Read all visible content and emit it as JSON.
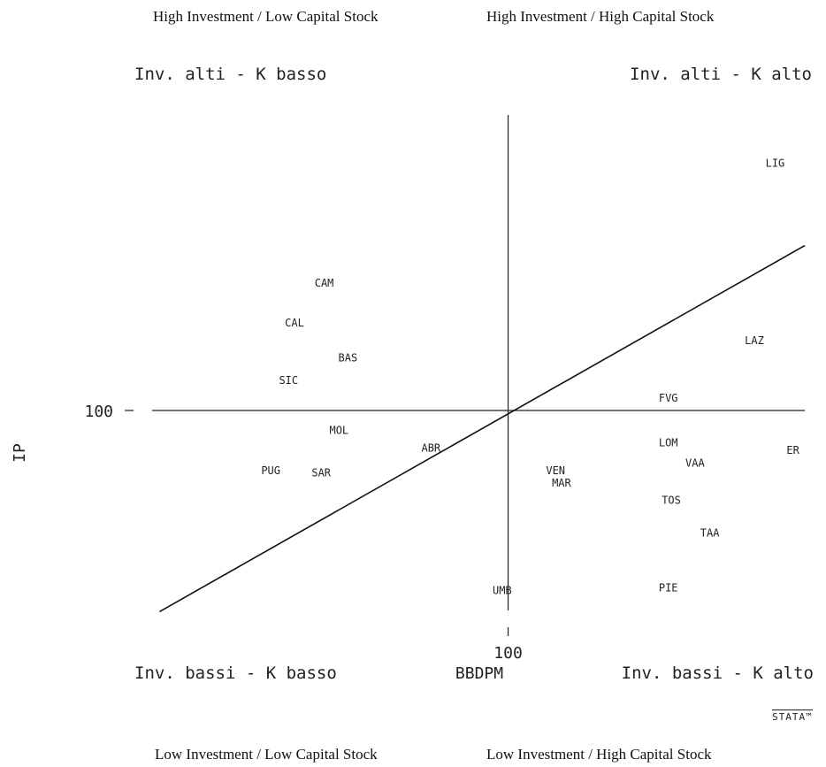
{
  "captions": {
    "top_left": "High Investment / Low Capital Stock",
    "top_right": "High Investment / High Capital Stock",
    "bottom_left": "Low Investment / Low Capital Stock",
    "bottom_right": "Low Investment / High Capital Stock"
  },
  "chart_data": {
    "type": "scatter",
    "xlabel": "BBDPM",
    "ylabel": "IP",
    "x_ref": 100,
    "y_ref": 100,
    "x_tick_label": "100",
    "y_tick_label": "100",
    "quadrant_labels": {
      "top_left": "Inv. alti - K basso",
      "top_right": "Inv. alti - K alto",
      "bottom_left": "Inv. bassi - K basso",
      "bottom_right": "Inv. bassi - K alto"
    },
    "points": [
      {
        "label": "LIG",
        "x": 190,
        "y": 199
      },
      {
        "label": "CAM",
        "x": 38,
        "y": 151
      },
      {
        "label": "CAL",
        "x": 28,
        "y": 135
      },
      {
        "label": "BAS",
        "x": 46,
        "y": 121
      },
      {
        "label": "SIC",
        "x": 26,
        "y": 112
      },
      {
        "label": "MOL",
        "x": 43,
        "y": 92
      },
      {
        "label": "ABR",
        "x": 74,
        "y": 85
      },
      {
        "label": "LAZ",
        "x": 183,
        "y": 128
      },
      {
        "label": "FVG",
        "x": 154,
        "y": 105
      },
      {
        "label": "LOM",
        "x": 154,
        "y": 87
      },
      {
        "label": "ER",
        "x": 196,
        "y": 84
      },
      {
        "label": "VAA",
        "x": 163,
        "y": 79
      },
      {
        "label": "PUG",
        "x": 20,
        "y": 76
      },
      {
        "label": "SAR",
        "x": 37,
        "y": 75
      },
      {
        "label": "VEN",
        "x": 116,
        "y": 76
      },
      {
        "label": "MAR",
        "x": 118,
        "y": 71
      },
      {
        "label": "TOS",
        "x": 155,
        "y": 64
      },
      {
        "label": "TAA",
        "x": 168,
        "y": 51
      },
      {
        "label": "UMB",
        "x": 98,
        "y": 28
      },
      {
        "label": "PIE",
        "x": 154,
        "y": 29
      }
    ],
    "xlim": [
      -20,
      200
    ],
    "ylim": [
      20,
      220
    ],
    "trend_line": {
      "x": [
        -17.5,
        200
      ],
      "y": [
        19.5,
        166
      ]
    },
    "logo": "STATA™"
  }
}
